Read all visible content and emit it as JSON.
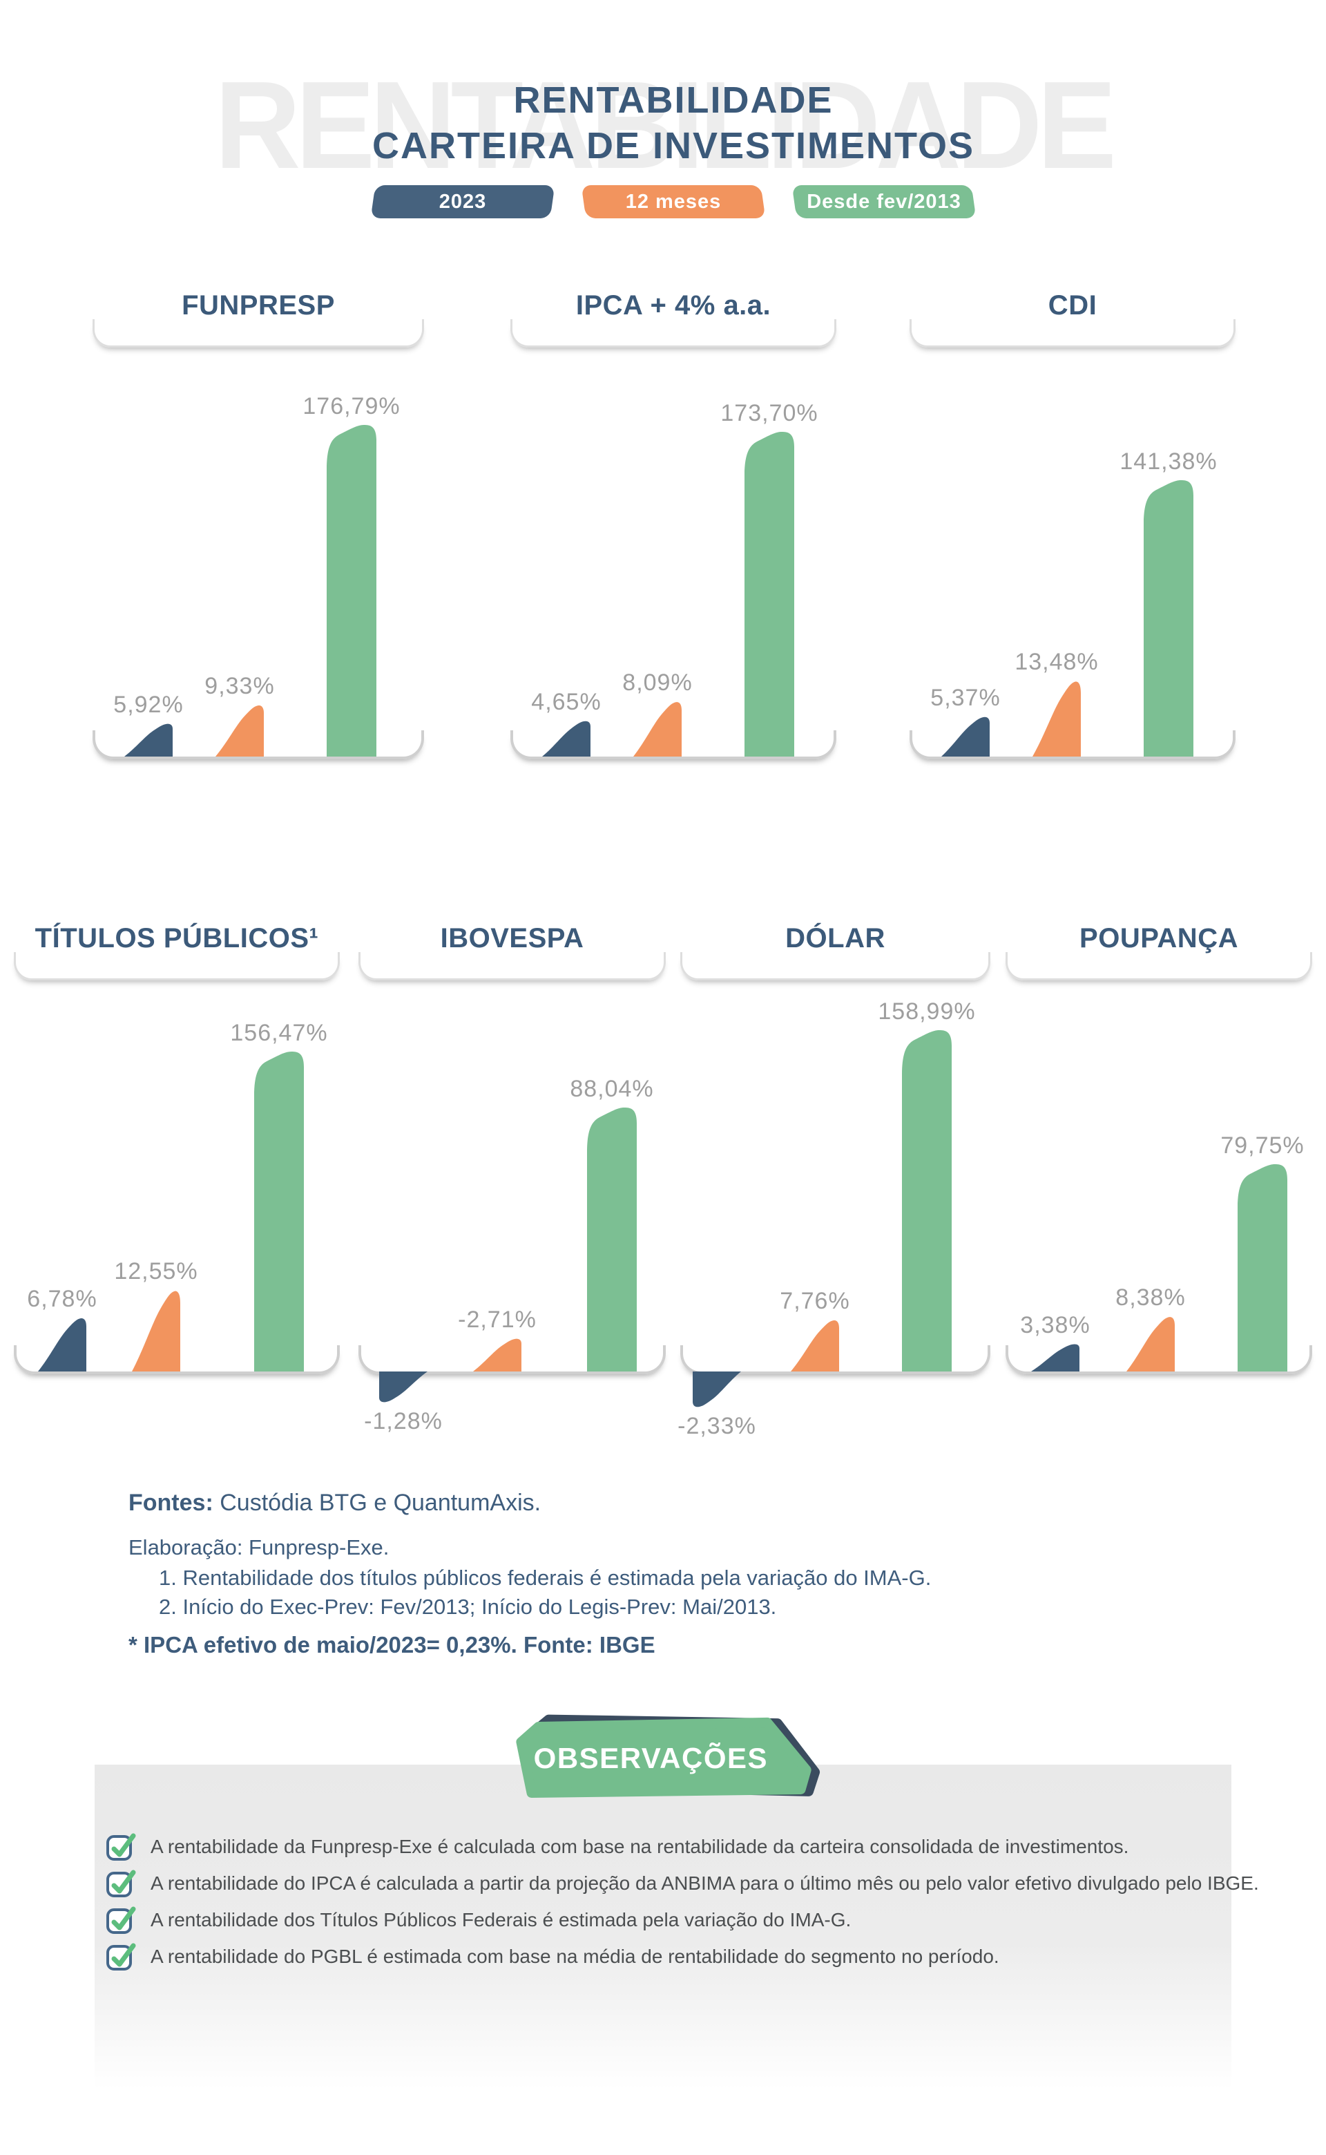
{
  "title": {
    "watermark": "RENTABILIDADE",
    "line1": "RENTABILIDADE",
    "line2": "CARTEIRA DE INVESTIMENTOS"
  },
  "legend": [
    {
      "label": "2023",
      "color": "#46627E"
    },
    {
      "label": "12 meses",
      "color": "#F2945E"
    },
    {
      "label": "Desde fev/2013",
      "color": "#7CBF93"
    }
  ],
  "colors": {
    "dark_blue": "#3F5C78",
    "orange": "#F2945E",
    "green": "#7CBF93",
    "title_blue": "#3C5A7A",
    "value_label_gray": "#9E9E9E",
    "watermark_gray": "#EDEDED",
    "bracket_gray": "#D8D8D8",
    "panel_gray": "#E9E9E9",
    "obs_badge_green": "#74BD8D",
    "obs_badge_shadow": "#3B4C5F",
    "check_green": "#5CBD7D",
    "checkbox_border": "#45678A",
    "note_text_gray": "#4B4E50"
  },
  "chart_data": {
    "type": "bar",
    "unit": "%",
    "series_periods": [
      "2023",
      "12 meses",
      "Desde fev/2013"
    ],
    "legend_position": "top",
    "grid": false,
    "charts": [
      {
        "name": "FUNPRESP",
        "bars": [
          {
            "period": "2023",
            "value": 5.92,
            "label": "5,92%"
          },
          {
            "period": "12 meses",
            "value": 9.33,
            "label": "9,33%"
          },
          {
            "period": "Desde fev/2013",
            "value": 176.79,
            "label": "176,79%"
          }
        ]
      },
      {
        "name": "IPCA + 4% a.a.",
        "bars": [
          {
            "period": "2023",
            "value": 4.65,
            "label": "4,65%"
          },
          {
            "period": "12 meses",
            "value": 8.09,
            "label": "8,09%"
          },
          {
            "period": "Desde fev/2013",
            "value": 173.7,
            "label": "173,70%"
          }
        ]
      },
      {
        "name": "CDI",
        "bars": [
          {
            "period": "2023",
            "value": 5.37,
            "label": "5,37%"
          },
          {
            "period": "12 meses",
            "value": 13.48,
            "label": "13,48%"
          },
          {
            "period": "Desde fev/2013",
            "value": 141.38,
            "label": "141,38%"
          }
        ]
      },
      {
        "name": "TÍTULOS PÚBLICOS¹",
        "bars": [
          {
            "period": "2023",
            "value": 6.78,
            "label": "6,78%"
          },
          {
            "period": "12 meses",
            "value": 12.55,
            "label": "12,55%"
          },
          {
            "period": "Desde fev/2013",
            "value": 156.47,
            "label": "156,47%"
          }
        ]
      },
      {
        "name": "IBOVESPA",
        "bars": [
          {
            "period": "2023",
            "value": -1.28,
            "label": "-1,28%",
            "drawn_below_baseline": true
          },
          {
            "period": "12 meses",
            "value": -2.71,
            "label": "-2,71%",
            "drawn_below_baseline": false
          },
          {
            "period": "Desde fev/2013",
            "value": 88.04,
            "label": "88,04%"
          }
        ]
      },
      {
        "name": "DÓLAR",
        "bars": [
          {
            "period": "2023",
            "value": -2.33,
            "label": "-2,33%",
            "drawn_below_baseline": true
          },
          {
            "period": "12 meses",
            "value": 7.76,
            "label": "7,76%"
          },
          {
            "period": "Desde fev/2013",
            "value": 158.99,
            "label": "158,99%"
          }
        ]
      },
      {
        "name": "POUPANÇA",
        "bars": [
          {
            "period": "2023",
            "value": 3.38,
            "label": "3,38%"
          },
          {
            "period": "12 meses",
            "value": 8.38,
            "label": "8,38%"
          },
          {
            "period": "Desde fev/2013",
            "value": 79.75,
            "label": "79,75%"
          }
        ]
      }
    ]
  },
  "fontes": {
    "label": "Fontes:",
    "text": "Custódia BTG e QuantumAxis.",
    "elaboracao": "Elaboração: Funpresp-Exe.",
    "nota1": "1. Rentabilidade dos títulos públicos federais é estimada pela variação do IMA-G.",
    "nota2": "2. Início do Exec-Prev: Fev/2013; Início do Legis-Prev: Mai/2013.",
    "ipca": "* IPCA efetivo de maio/2023= 0,23%. Fonte: IBGE"
  },
  "observacoes": {
    "title": "OBSERVAÇÕES",
    "items": [
      "A rentabilidade da Funpresp-Exe é calculada com base na rentabilidade da carteira consolidada de investimentos.",
      "A rentabilidade do IPCA é calculada a partir da projeção da ANBIMA para o último mês ou pelo valor efetivo divulgado pelo IBGE.",
      "A rentabilidade dos Títulos Públicos Federais é estimada pela variação do IMA-G.",
      "A rentabilidade do PGBL é estimada com base na média de rentabilidade do segmento no período."
    ]
  }
}
